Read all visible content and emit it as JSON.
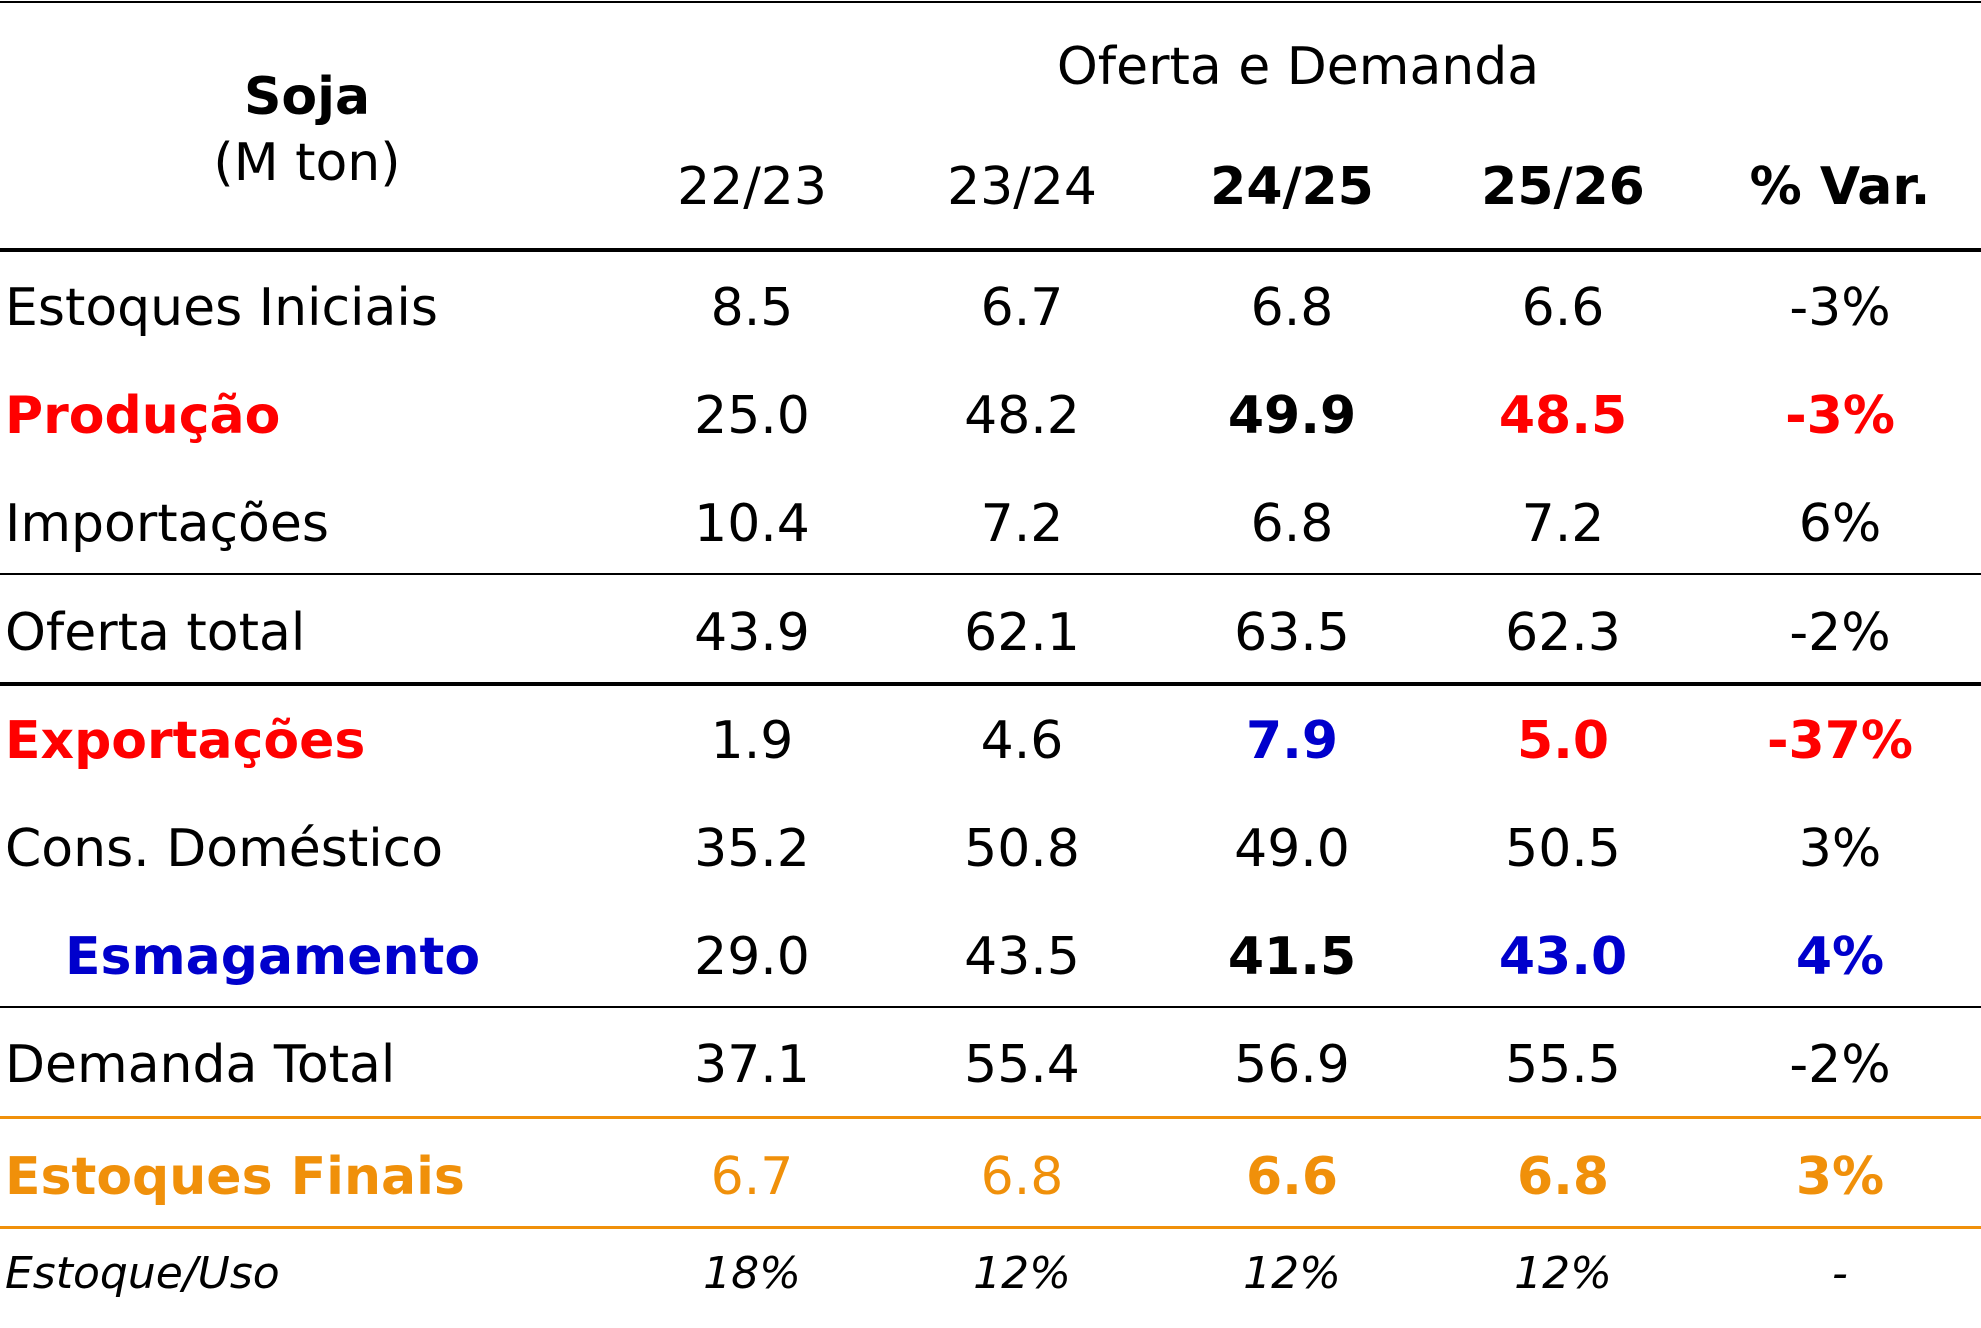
{
  "chart_data": {
    "type": "table",
    "header": {
      "title": "Soja",
      "unit": "(M ton)",
      "group": "Oferta e Demanda",
      "columns": [
        "22/23",
        "23/24",
        "24/25",
        "25/26",
        "% Var."
      ]
    },
    "rows": [
      {
        "label": "Estoques Iniciais",
        "values": [
          "8.5",
          "6.7",
          "6.8",
          "6.6",
          "-3%"
        ]
      },
      {
        "label": "Produção",
        "values": [
          "25.0",
          "48.2",
          "49.9",
          "48.5",
          "-3%"
        ]
      },
      {
        "label": "Importações",
        "values": [
          "10.4",
          "7.2",
          "6.8",
          "7.2",
          "6%"
        ]
      },
      {
        "label": "Oferta total",
        "values": [
          "43.9",
          "62.1",
          "63.5",
          "62.3",
          "-2%"
        ]
      },
      {
        "label": "Exportações",
        "values": [
          "1.9",
          "4.6",
          "7.9",
          "5.0",
          "-37%"
        ]
      },
      {
        "label": "Cons. Doméstico",
        "values": [
          "35.2",
          "50.8",
          "49.0",
          "50.5",
          "3%"
        ]
      },
      {
        "label": "Esmagamento",
        "values": [
          "29.0",
          "43.5",
          "41.5",
          "43.0",
          "4%"
        ]
      },
      {
        "label": "Demanda Total",
        "values": [
          "37.1",
          "55.4",
          "56.9",
          "55.5",
          "-2%"
        ]
      },
      {
        "label": "Estoques Finais",
        "values": [
          "6.7",
          "6.8",
          "6.6",
          "6.8",
          "3%"
        ]
      },
      {
        "label": "Estoque/Uso",
        "values": [
          "18%",
          "12%",
          "12%",
          "12%",
          "-"
        ]
      }
    ],
    "colors": {
      "text": "#000000",
      "red": "#ff0000",
      "blue": "#0000cc",
      "orange": "#f0900a",
      "rule": "#000000"
    }
  }
}
